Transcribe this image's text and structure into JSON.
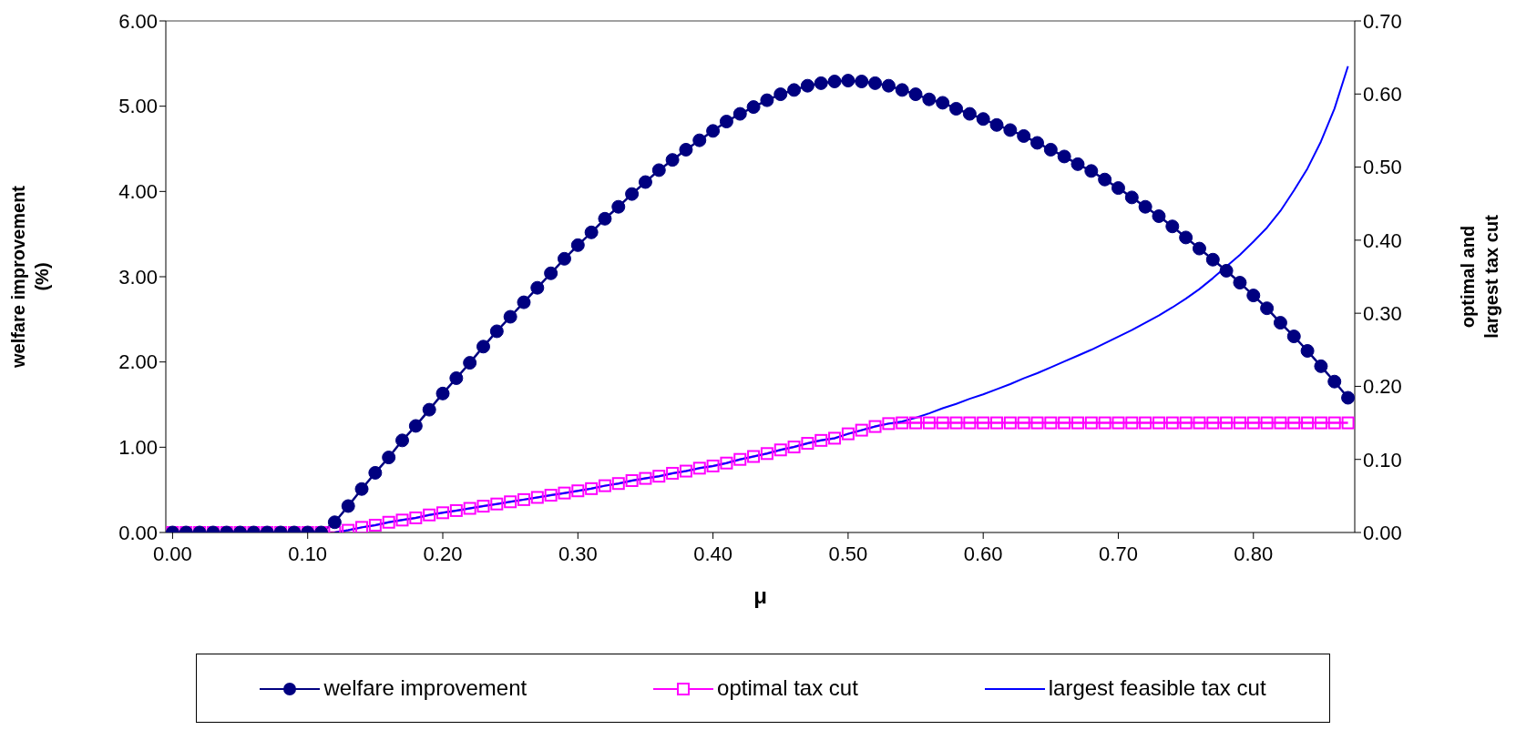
{
  "chart_data": {
    "type": "line",
    "xlabel": "μ",
    "ylabel": "welfare improvement (%)",
    "y2label": "optimal and largest tax cut",
    "x": [
      0,
      0.01,
      0.02,
      0.03,
      0.04,
      0.05,
      0.06,
      0.07,
      0.08,
      0.09,
      0.1,
      0.11,
      0.12,
      0.13,
      0.14,
      0.15,
      0.16,
      0.17,
      0.18,
      0.19,
      0.2,
      0.21,
      0.22,
      0.23,
      0.24,
      0.25,
      0.26,
      0.27,
      0.28,
      0.29,
      0.3,
      0.31,
      0.32,
      0.33,
      0.34,
      0.35,
      0.36,
      0.37,
      0.38,
      0.39,
      0.4,
      0.41,
      0.42,
      0.43,
      0.44,
      0.45,
      0.46,
      0.47,
      0.48,
      0.49,
      0.5,
      0.51,
      0.52,
      0.53,
      0.54,
      0.55,
      0.56,
      0.57,
      0.58,
      0.59,
      0.6,
      0.61,
      0.62,
      0.63,
      0.64,
      0.65,
      0.66,
      0.67,
      0.68,
      0.69,
      0.7,
      0.71,
      0.72,
      0.73,
      0.74,
      0.75,
      0.76,
      0.77,
      0.78,
      0.79,
      0.8,
      0.81,
      0.82,
      0.83,
      0.84,
      0.85,
      0.86,
      0.87
    ],
    "series": [
      {
        "name": "welfare improvement",
        "color": "#000080",
        "marker": "circle",
        "values": [
          0,
          0,
          0,
          0,
          0,
          0,
          0,
          0,
          0,
          0,
          0,
          0,
          0.12,
          0.31,
          0.51,
          0.7,
          0.88,
          1.08,
          1.25,
          1.44,
          1.63,
          1.81,
          1.99,
          2.18,
          2.36,
          2.53,
          2.7,
          2.87,
          3.04,
          3.21,
          3.37,
          3.52,
          3.68,
          3.82,
          3.97,
          4.11,
          4.25,
          4.37,
          4.49,
          4.6,
          4.71,
          4.82,
          4.91,
          4.99,
          5.07,
          5.14,
          5.19,
          5.24,
          5.27,
          5.29,
          5.3,
          5.29,
          5.27,
          5.24,
          5.19,
          5.14,
          5.08,
          5.04,
          4.97,
          4.91,
          4.85,
          4.78,
          4.72,
          4.65,
          4.57,
          4.49,
          4.41,
          4.32,
          4.24,
          4.14,
          4.04,
          3.93,
          3.82,
          3.71,
          3.59,
          3.46,
          3.33,
          3.2,
          3.07,
          2.93,
          2.78,
          2.63,
          2.46,
          2.3,
          2.13,
          1.95,
          1.77,
          1.58
        ]
      },
      {
        "name": "optimal tax cut",
        "color": "#ff00ff",
        "marker": "square",
        "axis": "y2",
        "values": [
          0,
          0,
          0,
          0,
          0,
          0,
          0,
          0,
          0,
          0,
          0,
          0,
          0,
          0.003,
          0.007,
          0.01,
          0.014,
          0.017,
          0.02,
          0.024,
          0.027,
          0.03,
          0.033,
          0.036,
          0.039,
          0.042,
          0.045,
          0.048,
          0.051,
          0.054,
          0.057,
          0.06,
          0.064,
          0.067,
          0.071,
          0.074,
          0.077,
          0.081,
          0.084,
          0.088,
          0.091,
          0.095,
          0.1,
          0.104,
          0.108,
          0.113,
          0.117,
          0.122,
          0.126,
          0.129,
          0.135,
          0.14,
          0.145,
          0.149,
          0.15,
          0.15,
          0.15,
          0.15,
          0.15,
          0.15,
          0.15,
          0.15,
          0.15,
          0.15,
          0.15,
          0.15,
          0.15,
          0.15,
          0.15,
          0.15,
          0.15,
          0.15,
          0.15,
          0.15,
          0.15,
          0.15,
          0.15,
          0.15,
          0.15,
          0.15,
          0.15,
          0.15,
          0.15,
          0.15,
          0.15,
          0.15,
          0.15,
          0.15
        ]
      },
      {
        "name": "largest feasible tax cut",
        "color": "#0000ff",
        "marker": "none",
        "axis": "y2",
        "values": [
          null,
          null,
          null,
          null,
          null,
          null,
          null,
          null,
          null,
          null,
          null,
          null,
          0,
          0.003,
          0.007,
          0.01,
          0.014,
          0.017,
          0.02,
          0.024,
          0.027,
          0.03,
          0.033,
          0.036,
          0.039,
          0.042,
          0.045,
          0.048,
          0.051,
          0.054,
          0.057,
          0.06,
          0.064,
          0.067,
          0.071,
          0.074,
          0.077,
          0.081,
          0.084,
          0.088,
          0.091,
          0.095,
          0.1,
          0.104,
          0.108,
          0.113,
          0.117,
          0.122,
          0.126,
          0.129,
          0.135,
          0.14,
          0.145,
          0.149,
          0.152,
          0.157,
          0.163,
          0.17,
          0.176,
          0.183,
          0.189,
          0.196,
          0.203,
          0.211,
          0.218,
          0.226,
          0.234,
          0.242,
          0.25,
          0.259,
          0.268,
          0.277,
          0.287,
          0.297,
          0.308,
          0.32,
          0.333,
          0.348,
          0.364,
          0.38,
          0.398,
          0.417,
          0.44,
          0.468,
          0.498,
          0.535,
          0.58,
          0.638
        ]
      }
    ],
    "xlim": [
      -0.005,
      0.875
    ],
    "xticks": [
      {
        "value": 0,
        "label": "0.00"
      },
      {
        "value": 0.1,
        "label": "0.10"
      },
      {
        "value": 0.2,
        "label": "0.20"
      },
      {
        "value": 0.3,
        "label": "0.30"
      },
      {
        "value": 0.4,
        "label": "0.40"
      },
      {
        "value": 0.5,
        "label": "0.50"
      },
      {
        "value": 0.6,
        "label": "0.60"
      },
      {
        "value": 0.7,
        "label": "0.70"
      },
      {
        "value": 0.8,
        "label": "0.80"
      }
    ],
    "ylim": [
      0,
      6
    ],
    "yticks": [
      {
        "value": 0,
        "label": "0.00"
      },
      {
        "value": 1,
        "label": "1.00"
      },
      {
        "value": 2,
        "label": "2.00"
      },
      {
        "value": 3,
        "label": "3.00"
      },
      {
        "value": 4,
        "label": "4.00"
      },
      {
        "value": 5,
        "label": "5.00"
      },
      {
        "value": 6,
        "label": "6.00"
      }
    ],
    "y2lim": [
      0,
      0.7
    ],
    "y2ticks": [
      {
        "value": 0,
        "label": "0.00"
      },
      {
        "value": 0.1,
        "label": "0.10"
      },
      {
        "value": 0.2,
        "label": "0.20"
      },
      {
        "value": 0.3,
        "label": "0.30"
      },
      {
        "value": 0.4,
        "label": "0.40"
      },
      {
        "value": 0.5,
        "label": "0.50"
      },
      {
        "value": 0.6,
        "label": "0.60"
      },
      {
        "value": 0.7,
        "label": "0.70"
      }
    ],
    "grid": false,
    "legend": "bottom",
    "line_style": "solid"
  }
}
